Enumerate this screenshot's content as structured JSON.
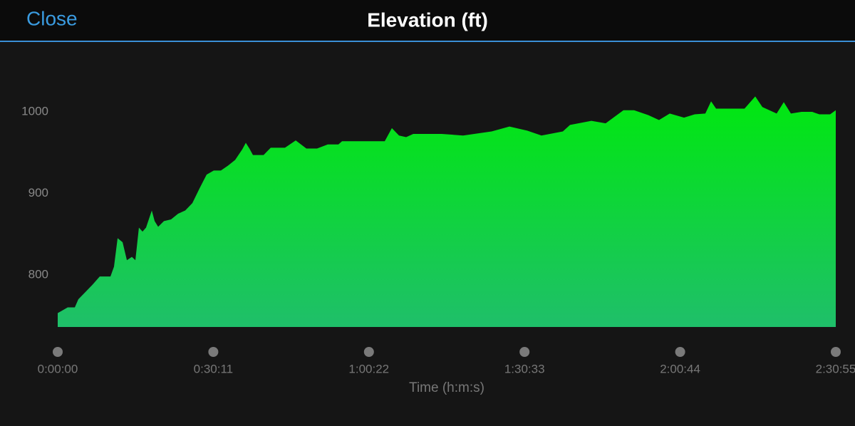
{
  "header": {
    "close": "Close",
    "title": "Elevation (ft)"
  },
  "chart_data": {
    "type": "area",
    "x_label": "Time (h:m:s)",
    "color_top": "#00e80f",
    "color_bottom": "#1fbf6a",
    "xlim": [
      0,
      9055
    ],
    "ylim": [
      736,
      1070
    ],
    "xticks": [
      {
        "value": 0,
        "label": "0:00:00"
      },
      {
        "value": 1811,
        "label": "0:30:11"
      },
      {
        "value": 3622,
        "label": "1:00:22"
      },
      {
        "value": 5433,
        "label": "1:30:33"
      },
      {
        "value": 7244,
        "label": "2:00:44"
      },
      {
        "value": 9055,
        "label": "2:30:55"
      }
    ],
    "yticks": [
      800,
      900,
      1000
    ],
    "x": [
      0,
      33,
      116,
      199,
      240,
      323,
      406,
      489,
      614,
      655,
      697,
      755,
      805,
      863,
      904,
      945,
      987,
      1028,
      1095,
      1128,
      1169,
      1236,
      1319,
      1401,
      1484,
      1567,
      1650,
      1733,
      1816,
      1899,
      1982,
      2065,
      2148,
      2189,
      2231,
      2272,
      2396,
      2479,
      2645,
      2770,
      2894,
      3018,
      3143,
      3267,
      3309,
      3806,
      3889,
      3972,
      4055,
      4138,
      4304,
      4469,
      4718,
      5050,
      5257,
      5464,
      5630,
      5879,
      5962,
      6211,
      6377,
      6584,
      6708,
      6874,
      6998,
      7123,
      7289,
      7413,
      7537,
      7604,
      7662,
      7993,
      8118,
      8201,
      8367,
      8450,
      8533,
      8657,
      8781,
      8864,
      8989,
      9055
    ],
    "values": [
      753,
      755,
      760,
      760,
      770,
      779,
      788,
      798,
      798,
      810,
      845,
      840,
      818,
      822,
      818,
      858,
      853,
      858,
      879,
      866,
      859,
      866,
      868,
      875,
      879,
      888,
      906,
      923,
      928,
      928,
      934,
      941,
      954,
      962,
      955,
      947,
      947,
      956,
      956,
      965,
      955,
      955,
      960,
      960,
      964,
      964,
      980,
      971,
      969,
      973,
      973,
      973,
      971,
      976,
      982,
      977,
      971,
      976,
      984,
      989,
      986,
      1002,
      1002,
      996,
      990,
      998,
      993,
      997,
      998,
      1013,
      1004,
      1004,
      1019,
      1006,
      998,
      1012,
      998,
      1000,
      1000,
      997,
      997,
      1002
    ]
  }
}
